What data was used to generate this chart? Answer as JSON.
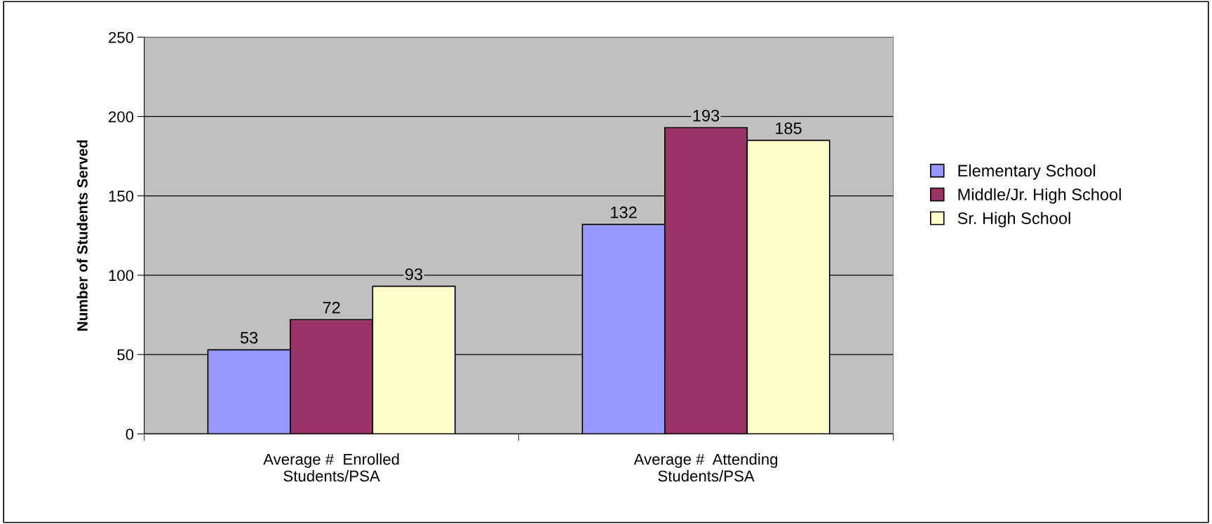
{
  "chart_data": {
    "type": "bar",
    "ylabel": "Number of Students Served",
    "categories": [
      "Average #  Enrolled\nStudents/PSA",
      "Average #  Attending\nStudents/PSA"
    ],
    "series": [
      {
        "name": "Elementary School",
        "color": "#9999ff",
        "values": [
          53,
          132
        ]
      },
      {
        "name": "Middle/Jr. High School",
        "color": "#993366",
        "values": [
          72,
          193
        ]
      },
      {
        "name": "Sr. High School",
        "color": "#ffffcc",
        "values": [
          93,
          185
        ]
      }
    ],
    "ylim": [
      0,
      250
    ],
    "yticks": [
      0,
      50,
      100,
      150,
      200,
      250
    ],
    "grid": "y",
    "legend": "right",
    "data_labels": true
  }
}
